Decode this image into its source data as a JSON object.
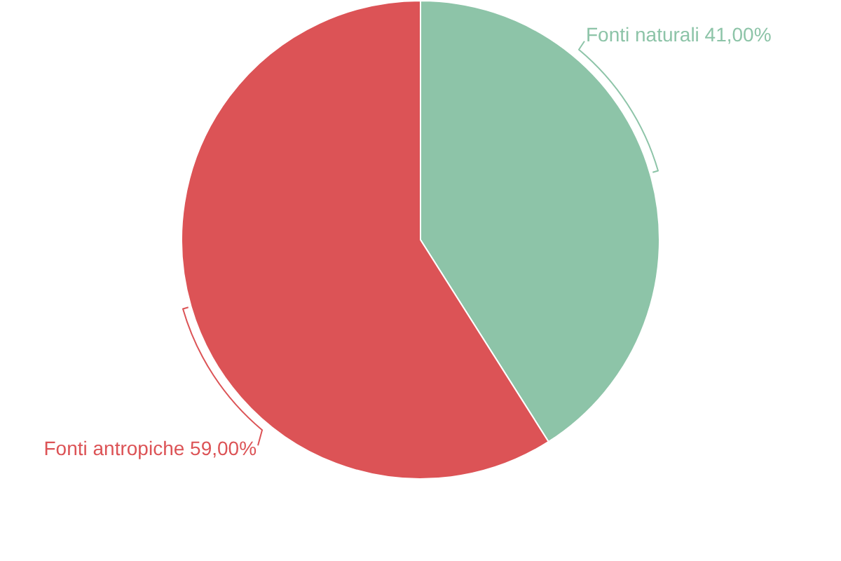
{
  "chart_data": {
    "type": "pie",
    "categories": [
      "Fonti naturali",
      "Fonti antropiche"
    ],
    "values": [
      41,
      59
    ],
    "colors": [
      "#8dc4a8",
      "#dc5356"
    ],
    "value_labels": [
      "41,00%",
      "59,00%"
    ]
  }
}
